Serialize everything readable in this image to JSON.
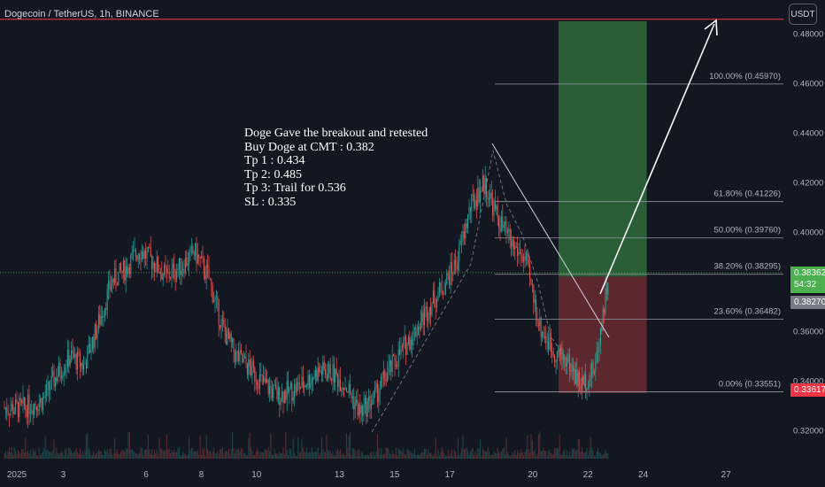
{
  "header": {
    "title": "Dogecoin / TetherUS, 1h, BINANCE",
    "currency": "USDT"
  },
  "note": {
    "lines": [
      "Doge Gave the breakout and retested",
      "Buy Doge at CMT : 0.382",
      "Tp 1 : 0.434",
      "Tp 2: 0.485",
      "Tp 3: Trail for 0.536",
      "SL : 0.335"
    ]
  },
  "price_tags": {
    "last_price": "0.38362",
    "countdown": "54:32",
    "prev_close": "0.38270",
    "low_marker": "0.33617"
  },
  "colors": {
    "up": "#26a69a",
    "down": "#ef5350",
    "background": "#131722",
    "grid_text": "#b2b5be",
    "target_zone": "#2e6b3a",
    "stop_zone": "#6b2a30",
    "resistance_line": "#f23645",
    "last_price_tag": "#4caf50",
    "low_tag": "#f23645"
  },
  "chart_data": {
    "type": "candlestick",
    "symbol": "Dogecoin / TetherUS, 1h, BINANCE",
    "y_axis": {
      "ticks": [
        "0.48000",
        "0.46000",
        "0.44000",
        "0.42000",
        "0.40000",
        "0.36000",
        "0.34000",
        "0.32000"
      ],
      "range": [
        0.313,
        0.488
      ]
    },
    "x_axis": {
      "ticks": [
        "2025",
        "3",
        "6",
        "8",
        "10",
        "13",
        "15",
        "17",
        "20",
        "22",
        "24",
        "27"
      ],
      "range": [
        "2025-01-01",
        "2025-01-28"
      ]
    },
    "fibonacci": [
      {
        "label": "100.00% (0.45970)",
        "price": 0.4597
      },
      {
        "label": "61.80% (0.41226)",
        "price": 0.41226
      },
      {
        "label": "50.00% (0.39760)",
        "price": 0.3976
      },
      {
        "label": "38.20% (0.38295)",
        "price": 0.38295
      },
      {
        "label": "23.60% (0.36482)",
        "price": 0.36482
      },
      {
        "label": "0.00% (0.33551)",
        "price": 0.33551
      }
    ],
    "position": {
      "entry": 0.382,
      "target": 0.485,
      "stop": 0.335,
      "start": "2025-01-21",
      "end": "2025-01-24"
    },
    "resistance_line": 0.4858,
    "current_price": 0.38362,
    "price_path": [
      [
        "2025-01-01",
        0.329
      ],
      [
        "2025-01-02",
        0.332
      ],
      [
        "2025-01-02",
        0.342
      ],
      [
        "2025-01-03",
        0.35
      ],
      [
        "2025-01-03",
        0.346
      ],
      [
        "2025-01-04",
        0.362
      ],
      [
        "2025-01-04",
        0.38
      ],
      [
        "2025-01-05",
        0.385
      ],
      [
        "2025-01-05",
        0.393
      ],
      [
        "2025-01-06",
        0.388
      ],
      [
        "2025-01-06",
        0.382
      ],
      [
        "2025-01-07",
        0.386
      ],
      [
        "2025-01-07",
        0.392
      ],
      [
        "2025-01-08",
        0.382
      ],
      [
        "2025-01-08",
        0.362
      ],
      [
        "2025-01-09",
        0.35
      ],
      [
        "2025-01-09",
        0.345
      ],
      [
        "2025-01-10",
        0.339
      ],
      [
        "2025-01-10",
        0.334
      ],
      [
        "2025-01-11",
        0.336
      ],
      [
        "2025-01-11",
        0.339
      ],
      [
        "2025-01-12",
        0.344
      ],
      [
        "2025-01-12",
        0.343
      ],
      [
        "2025-01-13",
        0.338
      ],
      [
        "2025-01-13",
        0.327
      ],
      [
        "2025-01-14",
        0.333
      ],
      [
        "2025-01-14",
        0.343
      ],
      [
        "2025-01-15",
        0.352
      ],
      [
        "2025-01-15",
        0.36
      ],
      [
        "2025-01-16",
        0.37
      ],
      [
        "2025-01-16",
        0.378
      ],
      [
        "2025-01-17",
        0.388
      ],
      [
        "2025-01-17",
        0.41
      ],
      [
        "2025-01-18",
        0.42
      ],
      [
        "2025-01-18",
        0.405
      ],
      [
        "2025-01-19",
        0.395
      ],
      [
        "2025-01-19",
        0.388
      ],
      [
        "2025-01-20",
        0.362
      ],
      [
        "2025-01-20",
        0.352
      ],
      [
        "2025-01-21",
        0.348
      ],
      [
        "2025-01-21",
        0.338
      ],
      [
        "2025-01-22",
        0.345
      ],
      [
        "2025-01-22",
        0.383
      ]
    ]
  }
}
